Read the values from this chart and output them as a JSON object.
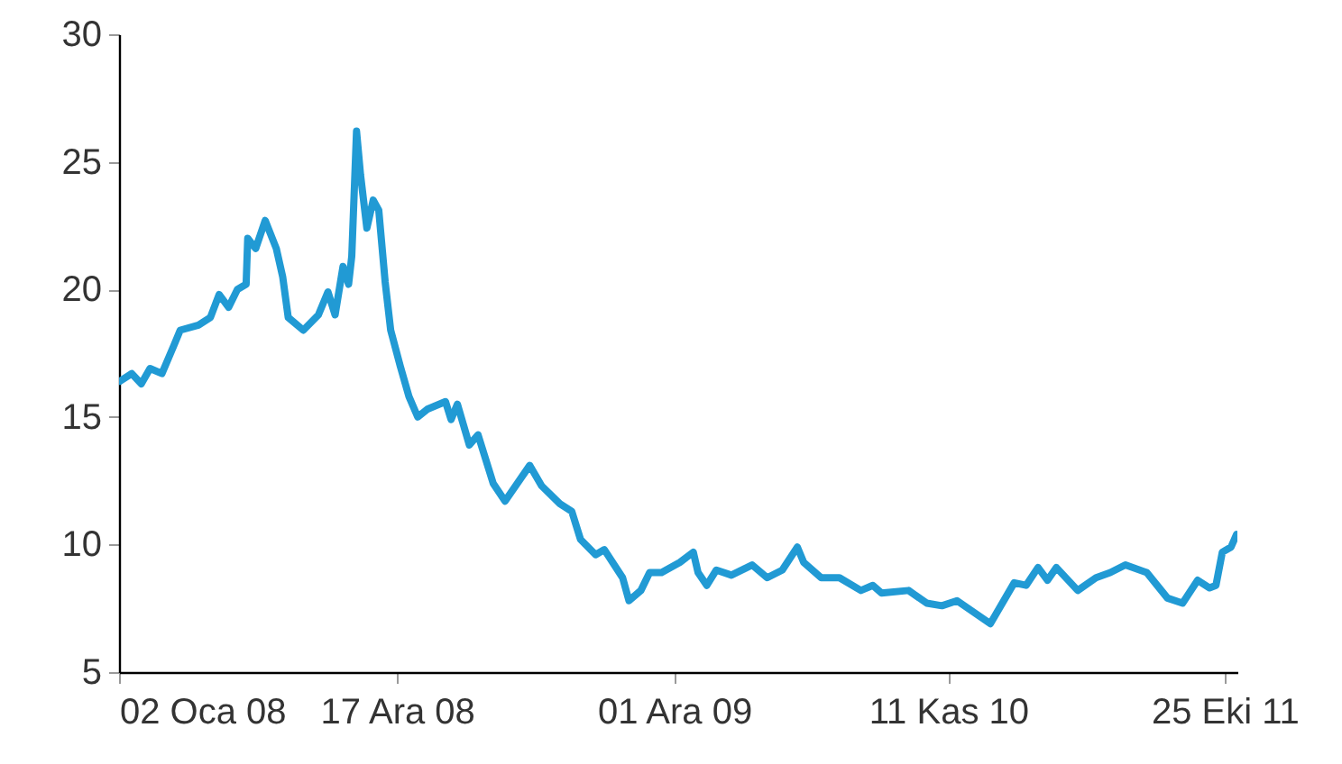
{
  "chart_data": {
    "type": "line",
    "x": [
      "2008-01-03",
      "2008-01-18",
      "2008-01-30",
      "2008-02-10",
      "2008-02-25",
      "2008-03-11",
      "2008-03-19",
      "2008-04-11",
      "2008-04-26",
      "2008-05-07",
      "2008-05-19",
      "2008-05-30",
      "2008-06-10",
      "2008-06-12",
      "2008-06-22",
      "2008-07-04",
      "2008-07-18",
      "2008-07-26",
      "2008-08-02",
      "2008-08-21",
      "2008-09-09",
      "2008-09-21",
      "2008-09-30",
      "2008-10-10",
      "2008-10-17",
      "2008-10-21",
      "2008-10-27",
      "2008-11-01",
      "2008-11-09",
      "2008-11-17",
      "2008-11-24",
      "2008-12-02",
      "2008-12-09",
      "2008-12-21",
      "2009-01-01",
      "2009-01-12",
      "2009-01-24",
      "2009-02-16",
      "2009-02-23",
      "2009-03-03",
      "2009-03-18",
      "2009-03-29",
      "2009-04-17",
      "2009-05-02",
      "2009-06-02",
      "2009-06-17",
      "2009-07-10",
      "2009-07-25",
      "2009-08-05",
      "2009-08-24",
      "2009-09-04",
      "2009-09-27",
      "2009-10-05",
      "2009-10-20",
      "2009-10-31",
      "2009-11-15",
      "2009-12-08",
      "2009-12-25",
      "2009-12-31",
      "2010-01-11",
      "2010-01-23",
      "2010-02-11",
      "2010-03-09",
      "2010-03-28",
      "2010-04-16",
      "2010-05-05",
      "2010-05-13",
      "2010-06-04",
      "2010-06-27",
      "2010-07-24",
      "2010-08-08",
      "2010-08-19",
      "2010-09-22",
      "2010-10-15",
      "2010-11-03",
      "2010-11-22",
      "2011-01-03",
      "2011-02-02",
      "2011-02-17",
      "2011-03-04",
      "2011-03-16",
      "2011-03-27",
      "2011-04-23",
      "2011-05-16",
      "2011-06-03",
      "2011-06-22",
      "2011-07-19",
      "2011-08-14",
      "2011-09-02",
      "2011-09-21",
      "2011-10-06",
      "2011-10-14",
      "2011-10-22",
      "2011-11-02",
      "2011-11-09"
    ],
    "series": [
      {
        "color": "#219ad4",
        "values": [
          16.4,
          16.7,
          16.3,
          16.9,
          16.7,
          17.8,
          18.4,
          18.6,
          18.9,
          19.8,
          19.3,
          20.0,
          20.2,
          22.0,
          21.6,
          22.7,
          21.6,
          20.5,
          18.9,
          18.4,
          19.0,
          19.9,
          19.0,
          20.9,
          20.2,
          21.3,
          26.2,
          24.5,
          22.4,
          23.5,
          23.1,
          20.3,
          18.4,
          17.0,
          15.8,
          15.0,
          15.3,
          15.6,
          14.9,
          15.5,
          13.9,
          14.3,
          12.4,
          11.7,
          13.1,
          12.3,
          11.6,
          11.3,
          10.2,
          9.6,
          9.8,
          8.7,
          7.8,
          8.2,
          8.9,
          8.9,
          9.3,
          9.7,
          8.9,
          8.4,
          9.0,
          8.8,
          9.2,
          8.7,
          9.0,
          9.9,
          9.3,
          8.7,
          8.7,
          8.2,
          8.4,
          8.1,
          8.2,
          7.7,
          7.6,
          7.8,
          6.9,
          8.5,
          8.4,
          9.1,
          8.6,
          9.1,
          8.2,
          8.7,
          8.9,
          9.2,
          8.9,
          7.9,
          7.7,
          8.6,
          8.3,
          8.4,
          9.7,
          9.9,
          10.4
        ]
      }
    ],
    "xlim": [
      "2008-01-02",
      "2011-11-10"
    ],
    "xticks": [
      {
        "value": "2008-01-02",
        "label": "02 Oca 08"
      },
      {
        "value": "2008-12-17",
        "label": "17 Ara 08"
      },
      {
        "value": "2009-12-01",
        "label": "01 Ara 09"
      },
      {
        "value": "2010-11-11",
        "label": "11 Kas 10"
      },
      {
        "value": "2011-10-25",
        "label": "25 Eki 11"
      }
    ],
    "ylim": [
      5,
      30
    ],
    "yticks": [
      5,
      10,
      15,
      20,
      25,
      30
    ],
    "line_style": "solid"
  }
}
